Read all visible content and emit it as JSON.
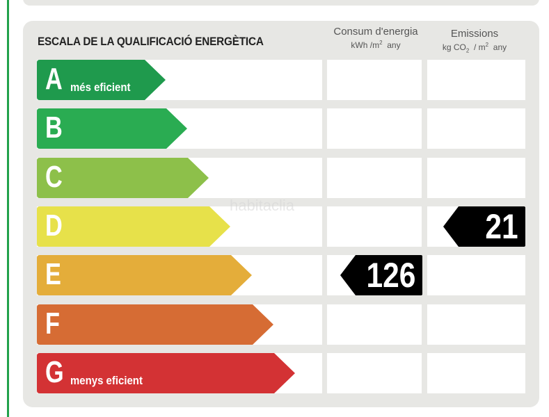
{
  "title": "ESCALA DE LA QUALIFICACIÓ ENERGÈTICA",
  "consumption_header": {
    "line1": "Consum d'energia",
    "unit_a": "kWh /m",
    "unit_sup": "2",
    "unit_b": "any"
  },
  "emissions_header": {
    "line1": "Emissions",
    "unit_a": "kg CO",
    "unit_sub": "2",
    "unit_mid": "/ m",
    "unit_sup": "2",
    "unit_b": "any"
  },
  "classes": [
    {
      "letter": "A",
      "label": "més eficient",
      "color": "#1f9a4d"
    },
    {
      "letter": "B",
      "label": "",
      "color": "#2aac52"
    },
    {
      "letter": "C",
      "label": "",
      "color": "#8dc04a"
    },
    {
      "letter": "D",
      "label": "",
      "color": "#e7e14a"
    },
    {
      "letter": "E",
      "label": "",
      "color": "#e4ad3a"
    },
    {
      "letter": "F",
      "label": "",
      "color": "#d66c34"
    },
    {
      "letter": "G",
      "label": "menys eficient",
      "color": "#d33234"
    }
  ],
  "consumption_rating": {
    "class": "E",
    "value": "126"
  },
  "emissions_rating": {
    "class": "D",
    "value": "21"
  },
  "watermark": "habitaclia"
}
